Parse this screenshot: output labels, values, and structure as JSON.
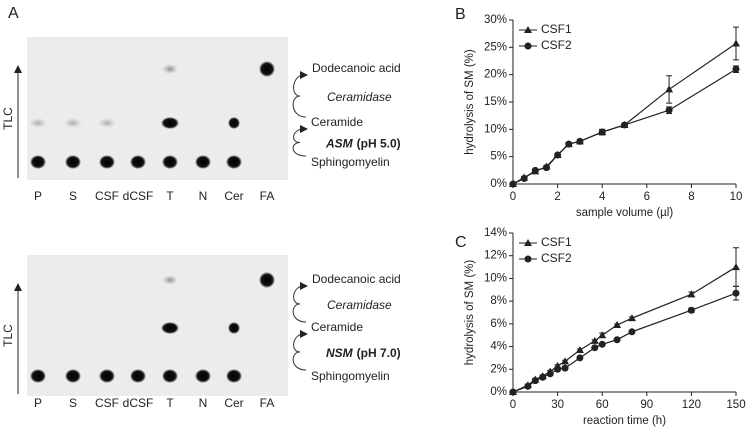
{
  "panel_a": {
    "letter": "A",
    "axis_label": "TLC",
    "lanes": [
      "P",
      "S",
      "CSF",
      "dCSF",
      "T",
      "N",
      "Cer",
      "FA"
    ],
    "plates": [
      {
        "product": "Dodecanoic acid",
        "second_enzyme": "Ceramidase",
        "intermediate": "Ceramide",
        "enzyme": "ASM",
        "condition": "(pH 5.0)",
        "substrate": "Sphingomyelin"
      },
      {
        "product": "Dodecanoic acid",
        "second_enzyme": "Ceramidase",
        "intermediate": "Ceramide",
        "enzyme": "NSM",
        "condition": "(pH 7.0)",
        "substrate": "Sphingomyelin"
      }
    ]
  },
  "chart_data": [
    {
      "type": "line",
      "letter": "B",
      "x_label": "sample volume (µl)",
      "y_label": "hydrolysis of SM (%)",
      "xlim": [
        0,
        10
      ],
      "xticks": [
        0,
        2,
        4,
        6,
        8,
        10
      ],
      "ylim": [
        0,
        30
      ],
      "yticks": [
        {
          "value": 0,
          "label": "0%"
        },
        {
          "value": 5,
          "label": "5%"
        },
        {
          "value": 10,
          "label": "10%"
        },
        {
          "value": 15,
          "label": "15%"
        },
        {
          "value": 20,
          "label": "20%"
        },
        {
          "value": 25,
          "label": "25%"
        },
        {
          "value": 30,
          "label": "30%"
        }
      ],
      "x": [
        0,
        0.5,
        1,
        1.5,
        2,
        2.5,
        3,
        4,
        5,
        7,
        10
      ],
      "series": [
        {
          "name": "CSF1",
          "color": "#222222",
          "marker": "triangle",
          "values": [
            0,
            1.2,
            2.3,
            3.2,
            5.3,
            7.3,
            7.8,
            9.5,
            10.8,
            17.3,
            25.7
          ],
          "errors": [
            0,
            0.2,
            0.2,
            0.2,
            0.3,
            0.3,
            0.3,
            0.5,
            0.3,
            2.5,
            3
          ]
        },
        {
          "name": "CSF2",
          "color": "#222222",
          "marker": "circle",
          "values": [
            0,
            1,
            2.5,
            3,
            5.3,
            7.3,
            7.8,
            9.5,
            10.8,
            13.5,
            21
          ],
          "errors": [
            0,
            0.2,
            0.2,
            0.2,
            0.3,
            0.3,
            0.3,
            0.5,
            0.3,
            0.6,
            0.6
          ]
        }
      ]
    },
    {
      "type": "line",
      "letter": "C",
      "x_label": "reaction time (h)",
      "y_label": "hydrolysis of SM (%)",
      "xlim": [
        0,
        150
      ],
      "xticks": [
        0,
        30,
        60,
        90,
        120,
        150
      ],
      "ylim": [
        0,
        14
      ],
      "yticks": [
        {
          "value": 0,
          "label": "0%"
        },
        {
          "value": 2,
          "label": "2%"
        },
        {
          "value": 4,
          "label": "4%"
        },
        {
          "value": 6,
          "label": "6%"
        },
        {
          "value": 8,
          "label": "8%"
        },
        {
          "value": 10,
          "label": "10%"
        },
        {
          "value": 12,
          "label": "12%"
        },
        {
          "value": 14,
          "label": "14%"
        }
      ],
      "x": [
        0,
        10,
        15,
        20,
        25,
        30,
        35,
        45,
        55,
        60,
        70,
        80,
        120,
        150
      ],
      "series": [
        {
          "name": "CSF1",
          "color": "#222222",
          "marker": "triangle",
          "values": [
            0,
            0.6,
            1.1,
            1.4,
            1.8,
            2.3,
            2.7,
            3.7,
            4.5,
            5,
            5.9,
            6.5,
            8.6,
            11
          ],
          "errors": [
            0,
            0.1,
            0.1,
            0.1,
            0.1,
            0.1,
            0.1,
            0.1,
            0.1,
            0.2,
            0.1,
            0.1,
            0.2,
            1.7
          ]
        },
        {
          "name": "CSF2",
          "color": "#222222",
          "marker": "circle",
          "values": [
            0,
            0.5,
            1,
            1.3,
            1.6,
            2,
            2.1,
            3,
            3.9,
            4.2,
            4.6,
            5.3,
            7.2,
            8.7
          ],
          "errors": [
            0,
            0.1,
            0.1,
            0.1,
            0.1,
            0.1,
            0.1,
            0.1,
            0.1,
            0.1,
            0.1,
            0.1,
            0.2,
            0.6
          ]
        }
      ]
    }
  ]
}
